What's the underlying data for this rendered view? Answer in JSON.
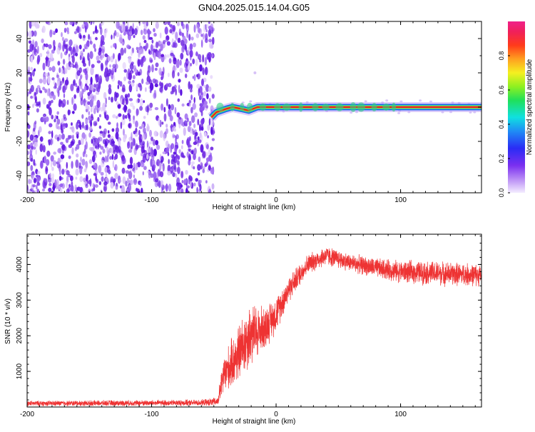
{
  "title": "GN04.2025.015.14.04.G05",
  "colors": {
    "snr_line": "#ee3333",
    "ridge": "#dd2222",
    "noise_dark": "#6a1fe0",
    "noise_light": "#c9a8f5",
    "axis": "#000000"
  },
  "chart_data": [
    {
      "type": "heatmap",
      "title": "GN04.2025.015.14.04.G05",
      "xlabel": "Height of straight line (km)",
      "ylabel": "Frequency (Hz)",
      "xlim": [
        -200,
        165
      ],
      "ylim": [
        -50,
        50
      ],
      "xticks": [
        -200,
        -100,
        0,
        100
      ],
      "yticks": [
        -40,
        -20,
        0,
        20,
        40
      ],
      "noise_region": {
        "x": [
          -200,
          -50
        ]
      },
      "ridge": {
        "freq_hz": 0,
        "x_start": -52,
        "x_end": 165,
        "trace": [
          {
            "x": -52,
            "y": -6
          },
          {
            "x": -48,
            "y": -3
          },
          {
            "x": -40,
            "y": -1
          },
          {
            "x": -35,
            "y": 0
          },
          {
            "x": -28,
            "y": -1
          },
          {
            "x": -22,
            "y": -2
          },
          {
            "x": -15,
            "y": 0
          },
          {
            "x": 0,
            "y": 0
          },
          {
            "x": 165,
            "y": 0
          }
        ]
      },
      "colorbar": {
        "label": "Normalized spectral amplitude",
        "ticks": [
          "0.0",
          "0.2",
          "0.4",
          "0.6",
          "0.8"
        ],
        "range": [
          0,
          1
        ],
        "scale": "rainbow (violet → blue → cyan → green → yellow → orange → red → magenta)"
      }
    },
    {
      "type": "line",
      "xlabel": "Height of straight line (km)",
      "ylabel": "SNR (10 * v/v)",
      "xlim": [
        -200,
        165
      ],
      "ylim": [
        0,
        4850
      ],
      "xticks": [
        -200,
        -100,
        0,
        100
      ],
      "yticks": [
        1000,
        2000,
        3000,
        4000
      ],
      "envelope": [
        {
          "x": -200,
          "base": 100,
          "noise": 120
        },
        {
          "x": -60,
          "base": 120,
          "noise": 140
        },
        {
          "x": -47,
          "base": 150,
          "noise": 200
        },
        {
          "x": -42,
          "base": 900,
          "noise": 900
        },
        {
          "x": -30,
          "base": 1500,
          "noise": 1300
        },
        {
          "x": -22,
          "base": 2000,
          "noise": 1500
        },
        {
          "x": -10,
          "base": 2200,
          "noise": 1000
        },
        {
          "x": 0,
          "base": 2600,
          "noise": 800
        },
        {
          "x": 10,
          "base": 3300,
          "noise": 600
        },
        {
          "x": 25,
          "base": 4000,
          "noise": 450
        },
        {
          "x": 40,
          "base": 4250,
          "noise": 450
        },
        {
          "x": 60,
          "base": 4050,
          "noise": 400
        },
        {
          "x": 80,
          "base": 3900,
          "noise": 450
        },
        {
          "x": 100,
          "base": 3800,
          "noise": 500
        },
        {
          "x": 130,
          "base": 3750,
          "noise": 550
        },
        {
          "x": 165,
          "base": 3700,
          "noise": 500
        }
      ]
    }
  ]
}
